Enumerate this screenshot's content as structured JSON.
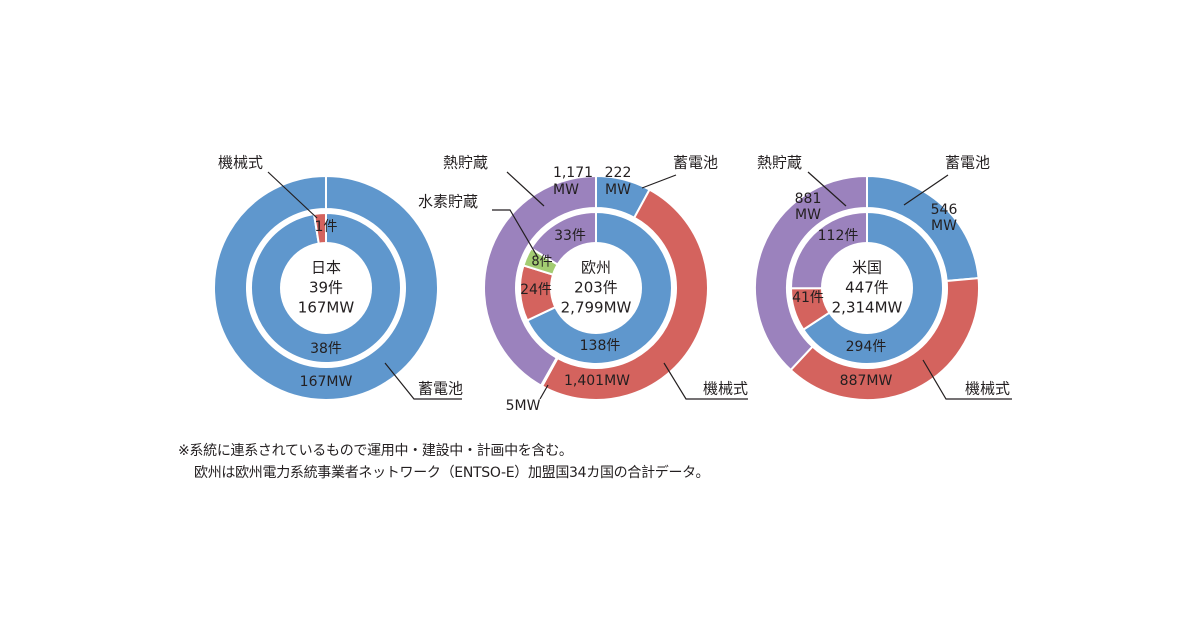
{
  "colors": {
    "storage_battery": "#5f97cd",
    "mechanical": "#d4635e",
    "thermal": "#9b82bd",
    "hydrogen": "#a3cc72",
    "leader": "#231f20"
  },
  "chart_data": [
    {
      "type": "donut",
      "region": "日本",
      "center_labels": [
        "日本",
        "39件",
        "167MW"
      ],
      "inner_ring_unit": "件",
      "outer_ring_unit": "MW",
      "categories": [
        "蓄電池",
        "機械式",
        "熱貯蔵",
        "水素貯蔵"
      ],
      "inner": [
        38,
        1,
        0,
        0
      ],
      "outer": [
        167,
        0,
        0,
        0
      ],
      "value_labels": {
        "inner": [
          "38件",
          "1件",
          "",
          ""
        ],
        "outer": [
          "167MW",
          "",
          "",
          ""
        ]
      },
      "callouts": [
        "機械式",
        "蓄電池"
      ]
    },
    {
      "type": "donut",
      "region": "欧州",
      "center_labels": [
        "欧州",
        "203件",
        "2,799MW"
      ],
      "inner_ring_unit": "件",
      "outer_ring_unit": "MW",
      "categories": [
        "蓄電池",
        "機械式",
        "熱貯蔵",
        "水素貯蔵"
      ],
      "inner": [
        138,
        24,
        33,
        8
      ],
      "outer": [
        222,
        1401,
        1171,
        5
      ],
      "value_labels": {
        "inner": [
          "138件",
          "24件",
          "33件",
          "8件"
        ],
        "outer_battery": [
          "222",
          "MW"
        ],
        "outer_mechanical": "1,401MW",
        "outer_thermal": [
          "1,171",
          "MW"
        ],
        "outer_hydrogen": "5MW"
      },
      "callouts": [
        "熱貯蔵",
        "水素貯蔵",
        "蓄電池",
        "機械式"
      ]
    },
    {
      "type": "donut",
      "region": "米国",
      "center_labels": [
        "米国",
        "447件",
        "2,314MW"
      ],
      "inner_ring_unit": "件",
      "outer_ring_unit": "MW",
      "categories": [
        "蓄電池",
        "機械式",
        "熱貯蔵",
        "水素貯蔵"
      ],
      "inner": [
        294,
        41,
        112,
        0
      ],
      "outer": [
        546,
        887,
        881,
        0
      ],
      "value_labels": {
        "inner": [
          "294件",
          "41件",
          "112件",
          ""
        ],
        "outer_battery": [
          "546",
          "MW"
        ],
        "outer_mechanical": "887MW",
        "outer_thermal": [
          "881",
          "MW"
        ]
      },
      "callouts": [
        "熱貯蔵",
        "蓄電池",
        "機械式"
      ]
    }
  ],
  "notes": [
    "※系統に連系されているもので運用中・建設中・計画中を含む。",
    "欧州は欧州電力系統事業者ネットワーク（ENTSO-E）加盟国34カ国の合計データ。"
  ]
}
